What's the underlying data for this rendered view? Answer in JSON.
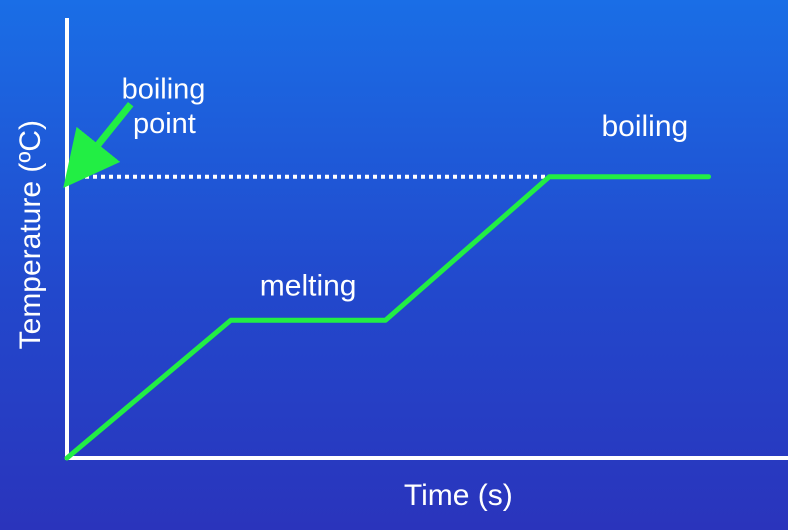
{
  "chart_data": {
    "type": "line",
    "title": "",
    "xlabel": "Time (s)",
    "ylabel": "Temperature (ºC)",
    "series": [
      {
        "x": [
          0,
          3.6,
          7.0,
          10.6,
          14.1
        ],
        "y": [
          0,
          4.75,
          4.75,
          9.7,
          9.7
        ]
      }
    ],
    "reference_line": {
      "y": 9.7,
      "style": "dotted",
      "color": "#ffffff"
    },
    "annotations": [
      {
        "text": "melting",
        "x": 5.3,
        "y": 5.6
      },
      {
        "text": "boiling",
        "x": 12.7,
        "y": 11.1
      }
    ],
    "boiling_point_callout": {
      "lines": [
        "boiling",
        "point"
      ],
      "arrow_color": "#22ee44"
    },
    "xlim": [
      0,
      16
    ],
    "ylim": [
      0,
      15
    ],
    "grid": false,
    "line_color": "#22ee44",
    "axis_color": "#ffffff"
  }
}
